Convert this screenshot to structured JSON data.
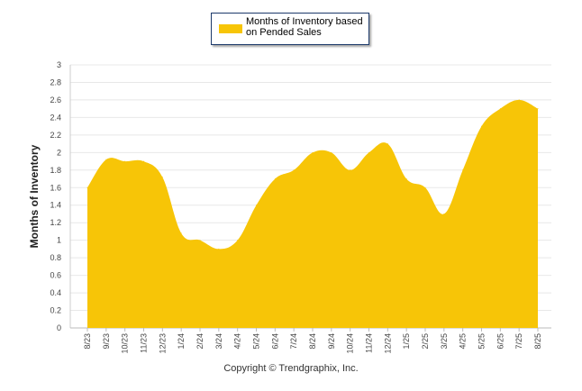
{
  "chart_data": {
    "type": "area",
    "x": [
      "8/23",
      "9/23",
      "10/23",
      "11/23",
      "12/23",
      "1/24",
      "2/24",
      "3/24",
      "4/24",
      "5/24",
      "6/24",
      "7/24",
      "8/24",
      "9/24",
      "10/24",
      "11/24",
      "12/24",
      "1/25",
      "2/25",
      "3/25",
      "4/25",
      "5/25",
      "6/25",
      "7/25",
      "8/25"
    ],
    "series": [
      {
        "name": "Months of Inventory based on Pended Sales",
        "values": [
          1.6,
          1.92,
          1.9,
          1.9,
          1.72,
          1.08,
          1.0,
          0.9,
          1.0,
          1.4,
          1.7,
          1.8,
          2.0,
          2.0,
          1.8,
          2.0,
          2.1,
          1.7,
          1.6,
          1.3,
          1.8,
          2.3,
          2.5,
          2.6,
          2.5
        ]
      }
    ],
    "ylabel": "Months of Inventory",
    "xlabel": "",
    "ylim": [
      0,
      3
    ],
    "yticks": [
      "0",
      "0.2",
      "0.4",
      "0.6",
      "0.8",
      "1",
      "1.2",
      "1.4",
      "1.6",
      "1.8",
      "2",
      "2.2",
      "2.4",
      "2.6",
      "2.8",
      "3"
    ],
    "grid": true,
    "legend": "top-center",
    "color": "#F7C507"
  },
  "footer": {
    "copyright": "Copyright © Trendgraphix, Inc."
  }
}
